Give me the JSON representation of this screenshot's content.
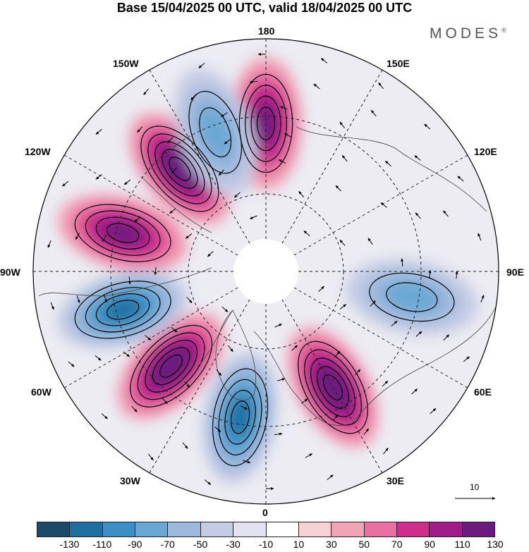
{
  "title": "Base 15/04/2025 00 UTC, valid 18/04/2025 00 UTC",
  "brand": {
    "name": "MODES",
    "mark": "®"
  },
  "map": {
    "projection": "north-polar-stereographic",
    "longitude_labels": {
      "lon_0": "0",
      "lon_30e": "30E",
      "lon_60e": "60E",
      "lon_90e": "90E",
      "lon_120e": "120E",
      "lon_150e": "150E",
      "lon_180": "180",
      "lon_150w": "150W",
      "lon_120w": "120W",
      "lon_90w": "90W",
      "lon_60w": "60W",
      "lon_30w": "30W"
    },
    "anomaly_centers": [
      {
        "lon": "180",
        "sign": "positive",
        "peak": 110
      },
      {
        "lon": "140W",
        "sign": "positive",
        "peak": 130
      },
      {
        "lon": "105W",
        "sign": "positive",
        "peak": 110
      },
      {
        "lon": "45W",
        "sign": "positive",
        "peak": 130
      },
      {
        "lon": "30E",
        "sign": "positive",
        "peak": 130
      },
      {
        "lon": "160W",
        "sign": "negative",
        "peak": -70
      },
      {
        "lon": "75W",
        "sign": "negative",
        "peak": -110
      },
      {
        "lon": "10W",
        "sign": "negative",
        "peak": -110
      },
      {
        "lon": "80E",
        "sign": "negative",
        "peak": -70
      }
    ]
  },
  "wind_scale": {
    "label": "10"
  },
  "colorbar": {
    "colors": [
      "#1b4a6b",
      "#1f6fa3",
      "#3b8fc4",
      "#6aa8d4",
      "#9db8dc",
      "#c4cbe4",
      "#e2e2f0",
      "#ffffff",
      "#f6d2d8",
      "#f1a4b8",
      "#ea6fa2",
      "#cf2d8c",
      "#a01c86",
      "#6a1b7e"
    ],
    "tick_labels": [
      "-130",
      "-110",
      "-90",
      "-70",
      "-50",
      "-30",
      "-10",
      "10",
      "30",
      "50",
      "70",
      "90",
      "110",
      "130"
    ]
  }
}
